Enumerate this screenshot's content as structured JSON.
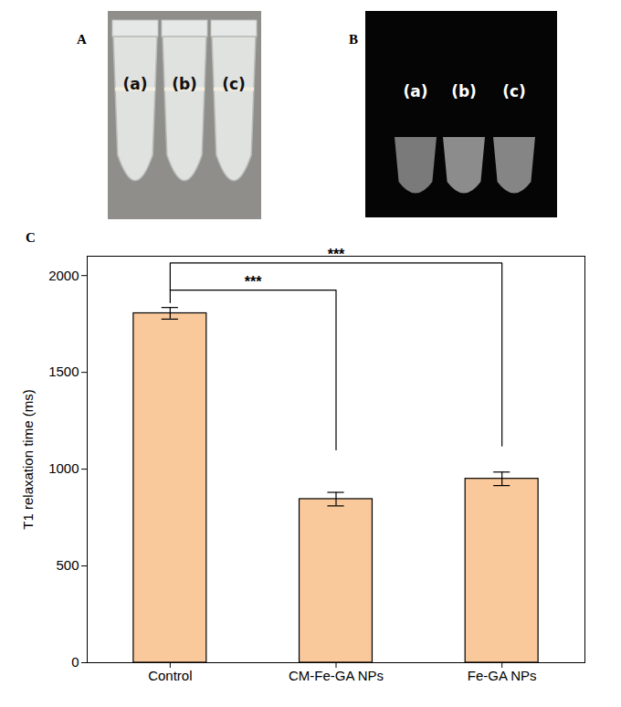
{
  "panels": [
    {
      "letter": "A",
      "tube_labels": [
        "(a)",
        "(b)",
        "(c)"
      ]
    },
    {
      "letter": "B",
      "tube_labels": [
        "(a)",
        "(b)",
        "(c)"
      ]
    }
  ],
  "chart_data": {
    "type": "bar",
    "panel_label": "C",
    "y_label": "T1 relaxation time (ms)",
    "categories": [
      "Control",
      "CM-Fe-GA NPs",
      "Fe-GA NPs"
    ],
    "values": [
      1805,
      845,
      950
    ],
    "errors": [
      30,
      35,
      35
    ],
    "color": "#f9c89b",
    "ylim": [
      0,
      2100
    ],
    "yticks": [
      0,
      500,
      1000,
      1500,
      2000
    ],
    "grid": false,
    "annotations": [
      {
        "text": "***",
        "from": "Control",
        "to": "CM-Fe-GA NPs",
        "y": 1925,
        "from_end": 1860,
        "to_end": 1100
      },
      {
        "text": "***",
        "from": "Control",
        "to": "Fe-GA NPs",
        "y": 2065,
        "from_end": 1925,
        "to_end": 1120
      }
    ]
  }
}
